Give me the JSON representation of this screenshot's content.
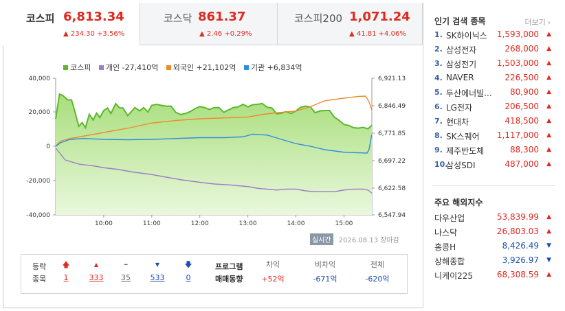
{
  "tabs": [
    {
      "name": "코스피",
      "value": "6,813.34",
      "change": "▲ 234.30 +3.56%"
    },
    {
      "name": "코스닥",
      "value": "861.37",
      "change": "▲ 2.46 +0.29%"
    },
    {
      "name": "코스피200",
      "value": "1,071.24",
      "change": "▲ 41.81 +4.06%"
    }
  ],
  "legend": [
    {
      "label": "코스피",
      "color": "#5bb82a"
    },
    {
      "label": "개인 -27,410억",
      "color": "#9b7fc9"
    },
    {
      "label": "외국인 +21,102억",
      "color": "#ef8a2c"
    },
    {
      "label": "기관 +6,834억",
      "color": "#2f8fdc"
    }
  ],
  "chart_data": {
    "type": "line",
    "y_left_ticks": [
      "40,000",
      "20,000",
      "0",
      "-20,000",
      "-40,000"
    ],
    "y_right_ticks": [
      "6,921.13",
      "6,846.49",
      "6,771.85",
      "6,697.22",
      "6,622.58",
      "6,547.94"
    ],
    "x_ticks": [
      "10:00",
      "11:00",
      "12:00",
      "13:00",
      "14:00",
      "15:00"
    ],
    "x_range": [
      9,
      15.58
    ],
    "ylim_left": [
      -40000,
      40000
    ],
    "ylim_right": [
      6547.94,
      6921.13
    ],
    "series": [
      {
        "name": "코스피",
        "color": "#5bb82a",
        "axis": "right",
        "x": [
          9.0,
          9.08,
          9.15,
          9.25,
          9.33,
          9.4,
          9.48,
          9.55,
          9.62,
          9.7,
          9.78,
          9.85,
          9.92,
          10.0,
          10.08,
          10.15,
          10.25,
          10.33,
          10.4,
          10.5,
          10.58,
          10.65,
          10.75,
          10.83,
          10.92,
          11.0,
          11.1,
          11.2,
          11.3,
          11.4,
          11.5,
          11.6,
          11.7,
          11.8,
          11.9,
          12.0,
          12.1,
          12.2,
          12.3,
          12.4,
          12.5,
          12.6,
          12.7,
          12.8,
          12.9,
          13.0,
          13.1,
          13.2,
          13.3,
          13.4,
          13.5,
          13.6,
          13.7,
          13.8,
          13.9,
          14.0,
          14.1,
          14.2,
          14.3,
          14.4,
          14.5,
          14.6,
          14.7,
          14.8,
          14.9,
          15.0,
          15.1,
          15.2,
          15.3,
          15.4,
          15.5,
          15.58
        ],
        "y": [
          6810,
          6878,
          6874,
          6862,
          6862,
          6830,
          6790,
          6800,
          6786,
          6823,
          6807,
          6826,
          6814,
          6833,
          6840,
          6825,
          6852,
          6840,
          6840,
          6819,
          6831,
          6841,
          6832,
          6841,
          6829,
          6847,
          6850,
          6847,
          6845,
          6845,
          6828,
          6822,
          6825,
          6830,
          6838,
          6844,
          6841,
          6836,
          6841,
          6841,
          6828,
          6835,
          6841,
          6843,
          6850,
          6843,
          6849,
          6850,
          6852,
          6842,
          6840,
          6824,
          6826,
          6830,
          6825,
          6832,
          6842,
          6845,
          6843,
          6827,
          6832,
          6833,
          6833,
          6815,
          6806,
          6795,
          6792,
          6786,
          6785,
          6787,
          6783,
          6793
        ]
      },
      {
        "name": "개인",
        "color": "#9b7fc9",
        "axis": "left",
        "x": [
          9.0,
          9.2,
          9.5,
          9.8,
          10.0,
          10.3,
          10.6,
          11.0,
          11.3,
          11.6,
          12.0,
          12.3,
          12.6,
          13.0,
          13.2,
          13.4,
          13.6,
          13.8,
          14.0,
          14.2,
          14.4,
          14.6,
          14.8,
          15.0,
          15.2,
          15.4,
          15.5,
          15.58
        ],
        "y": [
          -1000,
          -8000,
          -10500,
          -11500,
          -12500,
          -13500,
          -15000,
          -16500,
          -18000,
          -19500,
          -21000,
          -22000,
          -22500,
          -23500,
          -24500,
          -25000,
          -25500,
          -25000,
          -25000,
          -26000,
          -26500,
          -26500,
          -26500,
          -25500,
          -25000,
          -25000,
          -25500,
          -27410
        ]
      },
      {
        "name": "외국인",
        "color": "#ef8a2c",
        "axis": "left",
        "x": [
          9.0,
          9.1,
          9.3,
          9.6,
          10.0,
          10.5,
          11.0,
          11.5,
          12.0,
          12.5,
          13.0,
          13.3,
          13.6,
          14.0,
          14.3,
          14.6,
          15.0,
          15.3,
          15.45,
          15.52,
          15.58
        ],
        "y": [
          200,
          3000,
          4500,
          6000,
          8000,
          10500,
          13500,
          15000,
          16000,
          16500,
          17000,
          18500,
          19500,
          20500,
          23000,
          26500,
          28000,
          29000,
          29200,
          26000,
          21102
        ]
      },
      {
        "name": "기관",
        "color": "#2f8fdc",
        "axis": "left",
        "x": [
          9.0,
          9.1,
          9.3,
          9.6,
          10.0,
          10.5,
          11.0,
          11.5,
          12.0,
          12.5,
          12.9,
          13.1,
          13.4,
          13.7,
          14.0,
          14.3,
          14.6,
          15.0,
          15.3,
          15.48,
          15.52,
          15.58
        ],
        "y": [
          0,
          2000,
          4000,
          4500,
          4000,
          3800,
          4000,
          4500,
          5000,
          5000,
          5500,
          7000,
          6500,
          4000,
          1500,
          0,
          -2000,
          -3500,
          -3800,
          -4000,
          -2000,
          6834
        ]
      }
    ]
  },
  "time_button": "실시간",
  "time_text": "2026.08.13 장마감",
  "stats": {
    "label1": "등락",
    "label2": "종목",
    "counts": [
      {
        "icon": "🡅",
        "value": "1",
        "cls": "red"
      },
      {
        "icon": "▲",
        "value": "333",
        "cls": "red"
      },
      {
        "icon": "━",
        "value": "35",
        "cls": "gray"
      },
      {
        "icon": "▼",
        "value": "533",
        "cls": "blue"
      },
      {
        "icon": "🡇",
        "value": "0",
        "cls": "blue"
      }
    ],
    "prog_label1": "프로그램",
    "prog_label2": "매매동향",
    "prog": [
      {
        "head": "차익",
        "value": "+52억",
        "cls": "red"
      },
      {
        "head": "비차익",
        "value": "-671억",
        "cls": "blue"
      },
      {
        "head": "전체",
        "value": "-620억",
        "cls": "blue"
      }
    ]
  },
  "popular": {
    "title": "인기 검색 종목",
    "more": "더보기",
    "items": [
      {
        "no": "1.",
        "name": "SK하이닉스",
        "price": "1,593,000"
      },
      {
        "no": "2.",
        "name": "삼성전자",
        "price": "268,000"
      },
      {
        "no": "3.",
        "name": "삼성전기",
        "price": "1,503,000"
      },
      {
        "no": "4.",
        "name": "NAVER",
        "price": "226,500"
      },
      {
        "no": "5.",
        "name": "두산에너빌...",
        "price": "80,900"
      },
      {
        "no": "6.",
        "name": "LG전자",
        "price": "206,500"
      },
      {
        "no": "7.",
        "name": "현대차",
        "price": "418,500"
      },
      {
        "no": "8.",
        "name": "SK스퀘어",
        "price": "1,117,000"
      },
      {
        "no": "9.",
        "name": "제주반도체",
        "price": "88,300"
      },
      {
        "no": "10.",
        "name": "삼성SDI",
        "price": "487,000"
      }
    ]
  },
  "world": {
    "title": "주요 해외지수",
    "items": [
      {
        "name": "다우산업",
        "value": "53,839.99",
        "dir": "up"
      },
      {
        "name": "나스닥",
        "value": "26,803.03",
        "dir": "up"
      },
      {
        "name": "홍콩H",
        "value": "8,426.49",
        "dir": "down"
      },
      {
        "name": "상해종합",
        "value": "3,926.97",
        "dir": "down"
      },
      {
        "name": "니케이225",
        "value": "68,308.59",
        "dir": "up"
      }
    ]
  }
}
